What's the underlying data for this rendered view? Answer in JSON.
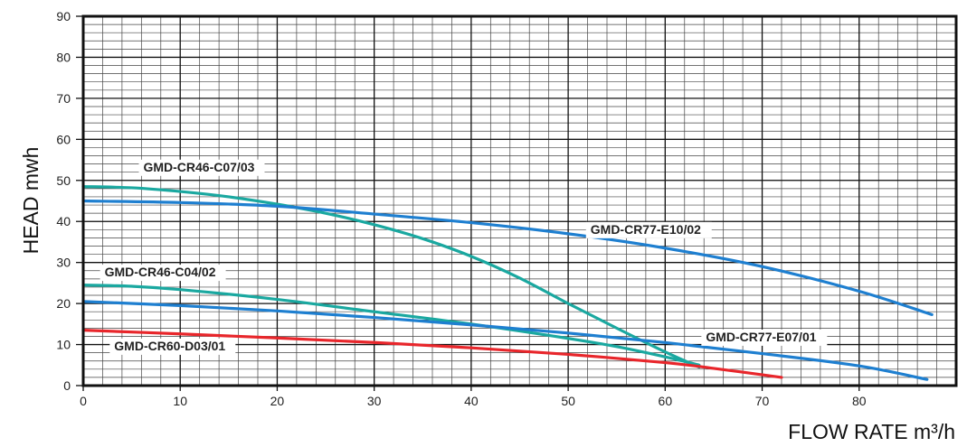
{
  "chart_data": {
    "type": "line",
    "title": "",
    "xlabel": "FLOW RATE m³/h",
    "ylabel": "HEAD mwh",
    "xlim": [
      0,
      90
    ],
    "ylim": [
      0,
      90
    ],
    "xticks": [
      "0",
      "10",
      "20",
      "30",
      "40",
      "50",
      "60",
      "70",
      "80"
    ],
    "yticks": [
      "0",
      "10",
      "20",
      "30",
      "40",
      "50",
      "60",
      "70",
      "80",
      "90"
    ],
    "grid": true,
    "series": [
      {
        "name": "GMD-CR46-C07/03",
        "color": "#1aa8a0",
        "points": [
          [
            0,
            48.5
          ],
          [
            5,
            48.2
          ],
          [
            10,
            47.3
          ],
          [
            15,
            46
          ],
          [
            20,
            44.2
          ],
          [
            25,
            42
          ],
          [
            30,
            39.2
          ],
          [
            35,
            35.8
          ],
          [
            40,
            31.5
          ],
          [
            45,
            26.2
          ],
          [
            50,
            20
          ],
          [
            55,
            14
          ],
          [
            60,
            8.2
          ],
          [
            63.5,
            4.5
          ]
        ]
      },
      {
        "name": "GMD-CR77-E10/02",
        "color": "#1e7fd0",
        "points": [
          [
            0,
            45
          ],
          [
            10,
            44.6
          ],
          [
            20,
            43.7
          ],
          [
            30,
            41.8
          ],
          [
            40,
            39.7
          ],
          [
            50,
            37
          ],
          [
            60,
            33.5
          ],
          [
            70,
            29
          ],
          [
            80,
            23
          ],
          [
            87.5,
            17.3
          ]
        ]
      },
      {
        "name": "GMD-CR46-C04/02",
        "color": "#1aa8a0",
        "points": [
          [
            0,
            24.5
          ],
          [
            5,
            24.2
          ],
          [
            10,
            23.4
          ],
          [
            20,
            21
          ],
          [
            30,
            18
          ],
          [
            40,
            15
          ],
          [
            50,
            11.5
          ],
          [
            55,
            9.5
          ],
          [
            60,
            7
          ],
          [
            63.5,
            5
          ]
        ]
      },
      {
        "name": "GMD-CR77-E07/01",
        "color": "#1e7fd0",
        "points": [
          [
            0,
            20.5
          ],
          [
            10,
            19.5
          ],
          [
            20,
            18.2
          ],
          [
            30,
            16.6
          ],
          [
            40,
            14.8
          ],
          [
            50,
            12.8
          ],
          [
            60,
            10.5
          ],
          [
            70,
            7.8
          ],
          [
            80,
            4.8
          ],
          [
            87,
            1.5
          ]
        ]
      },
      {
        "name": "GMD-CR60-D03/01",
        "color": "#e8262b",
        "points": [
          [
            0,
            13.5
          ],
          [
            10,
            12.6
          ],
          [
            20,
            11.6
          ],
          [
            30,
            10.5
          ],
          [
            40,
            9.2
          ],
          [
            50,
            7.6
          ],
          [
            60,
            5.6
          ],
          [
            65,
            4.2
          ],
          [
            72,
            2
          ]
        ]
      }
    ]
  }
}
